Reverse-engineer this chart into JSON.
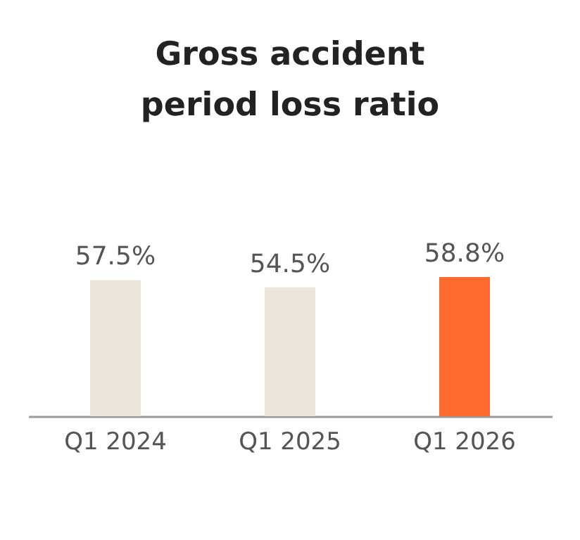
{
  "chart_data": {
    "type": "bar",
    "title": "Gross accident period loss ratio",
    "categories": [
      "Q1 2024",
      "Q1 2025",
      "Q1 2026"
    ],
    "values": [
      57.5,
      54.5,
      58.8
    ],
    "value_labels": [
      "57.5%",
      "54.5%",
      "58.8%"
    ],
    "colors": [
      "#ede5d9",
      "#ede5d9",
      "#ff6b2c"
    ]
  }
}
